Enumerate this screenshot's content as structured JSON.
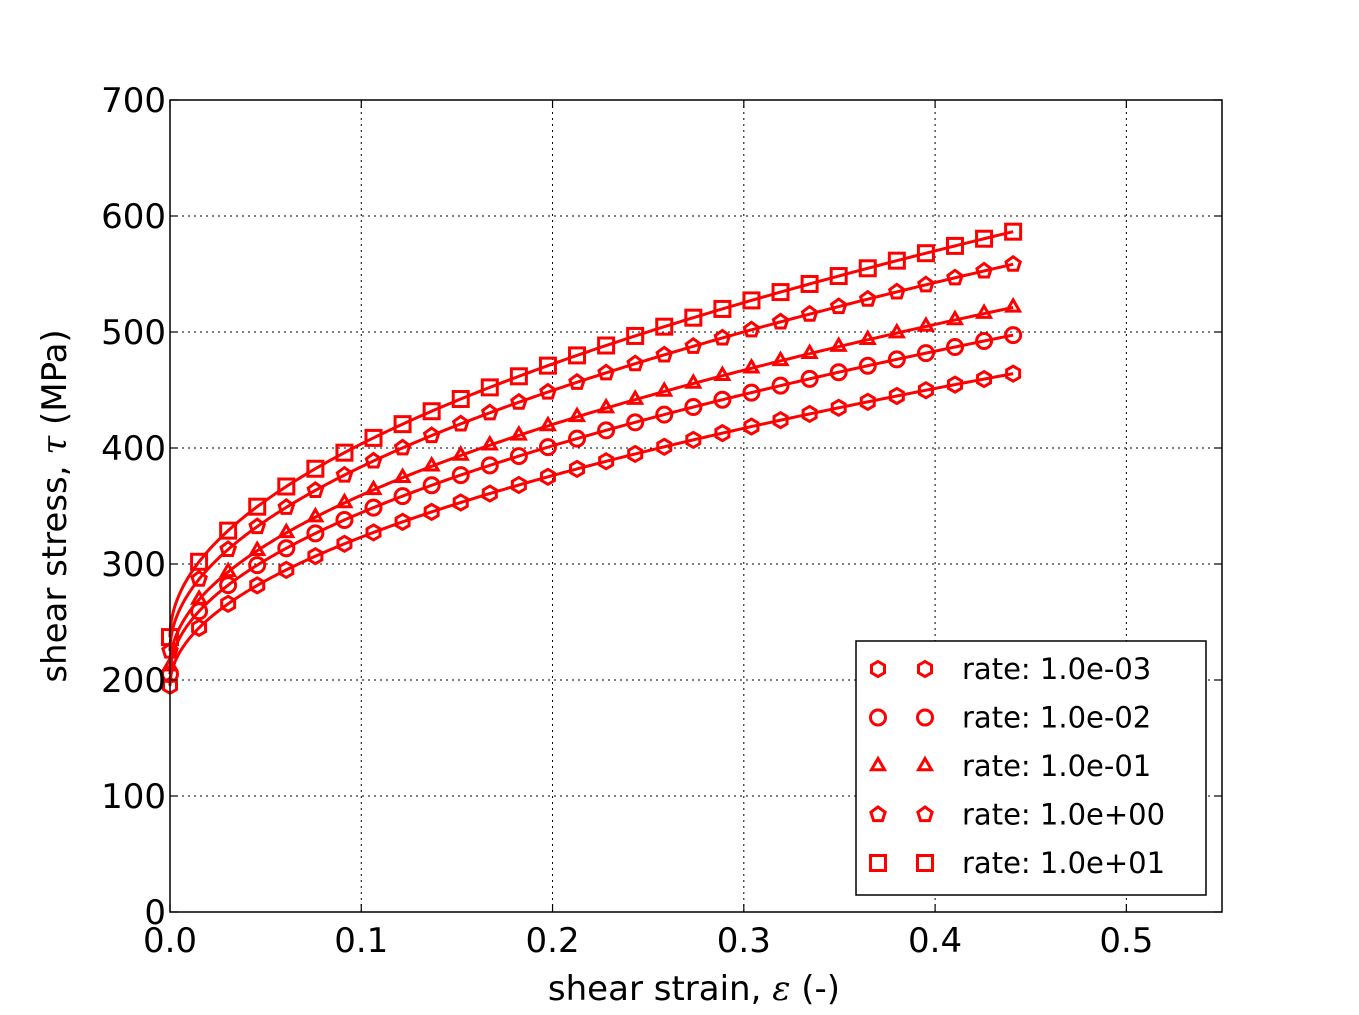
{
  "chart_data": {
    "type": "line",
    "title": "",
    "xlabel_prefix": "shear strain, ",
    "xlabel_symbol": "ε",
    "xlabel_suffix": " (-)",
    "ylabel_prefix": "shear stress, ",
    "ylabel_symbol": "τ",
    "ylabel_suffix": " (MPa)",
    "xlim": [
      0,
      0.55
    ],
    "ylim": [
      0,
      700
    ],
    "xticks": [
      0.0,
      0.1,
      0.2,
      0.3,
      0.4,
      0.5
    ],
    "xtick_labels": [
      "0.0",
      "0.1",
      "0.2",
      "0.3",
      "0.4",
      "0.5"
    ],
    "yticks": [
      0,
      100,
      200,
      300,
      400,
      500,
      600,
      700
    ],
    "ytick_labels": [
      "0",
      "100",
      "200",
      "300",
      "400",
      "500",
      "600",
      "700"
    ],
    "grid": true,
    "legend_position": "lower-right",
    "color": "#ff0000",
    "marker_x": [
      0.0,
      0.0152,
      0.0304,
      0.0456,
      0.0608,
      0.076,
      0.0912,
      0.1064,
      0.1216,
      0.1368,
      0.152,
      0.1672,
      0.1824,
      0.1976,
      0.2128,
      0.228,
      0.2432,
      0.2584,
      0.2736,
      0.2888,
      0.304,
      0.3192,
      0.3344,
      0.3496,
      0.3648,
      0.38,
      0.3952,
      0.4104,
      0.4256,
      0.4408
    ],
    "series": [
      {
        "name": "rate: 1.0e-03",
        "marker": "hexagon",
        "tau0": 195,
        "coef": 405.3
      },
      {
        "name": "rate: 1.0e-02",
        "marker": "circle",
        "tau0": 205,
        "coef": 440.3
      },
      {
        "name": "rate: 1.0e-01",
        "marker": "triangle",
        "tau0": 212,
        "coef": 465.7
      },
      {
        "name": "rate: 1.0e+00",
        "marker": "pentagon",
        "tau0": 225,
        "coef": 502.2
      },
      {
        "name": "rate: 1.0e+01",
        "marker": "square",
        "tau0": 237,
        "coef": 526.4
      }
    ],
    "curve_model": "tau = tau0 + coef * strain^0.5"
  }
}
